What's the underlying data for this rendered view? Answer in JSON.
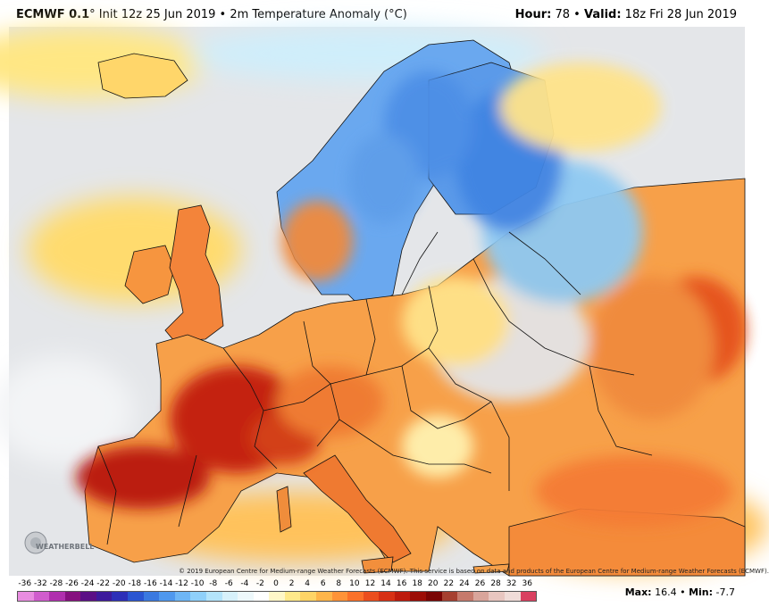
{
  "header": {
    "model": "ECMWF 0.1",
    "degree": "°",
    "init": "Init 12z 25 Jun 2019",
    "bullet": "•",
    "product": "2m Temperature Anomaly (°C)",
    "hour_label": "Hour:",
    "hour_value": "78",
    "valid_label": "Valid:",
    "valid_value": "18z Fri 28 Jun 2019"
  },
  "map": {
    "region": "Europe",
    "credit": "© 2019 European Centre for Medium-range Weather Forecasts (ECMWF). This service is based on data and products of the European Centre for Medium-range Weather Forecasts (ECMWF).",
    "logo_text": "WEATHERBELL"
  },
  "legend": {
    "ticks": [
      "-36",
      "-32",
      "-28",
      "-26",
      "-24",
      "-22",
      "-20",
      "-18",
      "-16",
      "-14",
      "-12",
      "-10",
      "-8",
      "-6",
      "-4",
      "-2",
      "0",
      "2",
      "4",
      "6",
      "8",
      "10",
      "12",
      "14",
      "16",
      "18",
      "20",
      "22",
      "24",
      "26",
      "28",
      "32",
      "36"
    ],
    "colors": [
      "#e88ce0",
      "#d05ccd",
      "#b02fae",
      "#86107f",
      "#5b0f86",
      "#3d1a9c",
      "#2d2fb8",
      "#2a55d1",
      "#3a79e0",
      "#4f98ee",
      "#6eb6f5",
      "#8fd0fa",
      "#b4e4fb",
      "#d7f1fb",
      "#eef8fb",
      "#ffffff",
      "#fff7c8",
      "#ffe98a",
      "#ffd466",
      "#ffb54a",
      "#ff9338",
      "#fb7129",
      "#eb4e1e",
      "#d73014",
      "#bd1a0c",
      "#9c0d06",
      "#7a0504",
      "#a64030",
      "#c67a6c",
      "#d9a59b",
      "#e8c6c0",
      "#f0dcd8",
      "#d94060"
    ]
  },
  "stats": {
    "max_label": "Max:",
    "max_value": "16.4",
    "min_label": "Min:",
    "min_value": "-7.7"
  },
  "colors": {
    "ocean": "#dfe0e3",
    "hot": "#c8220e",
    "warm": "#f08a3c",
    "mild": "#ffd870",
    "cool": "#7fc6f2",
    "cold": "#3f86e4",
    "border": "#111111"
  }
}
